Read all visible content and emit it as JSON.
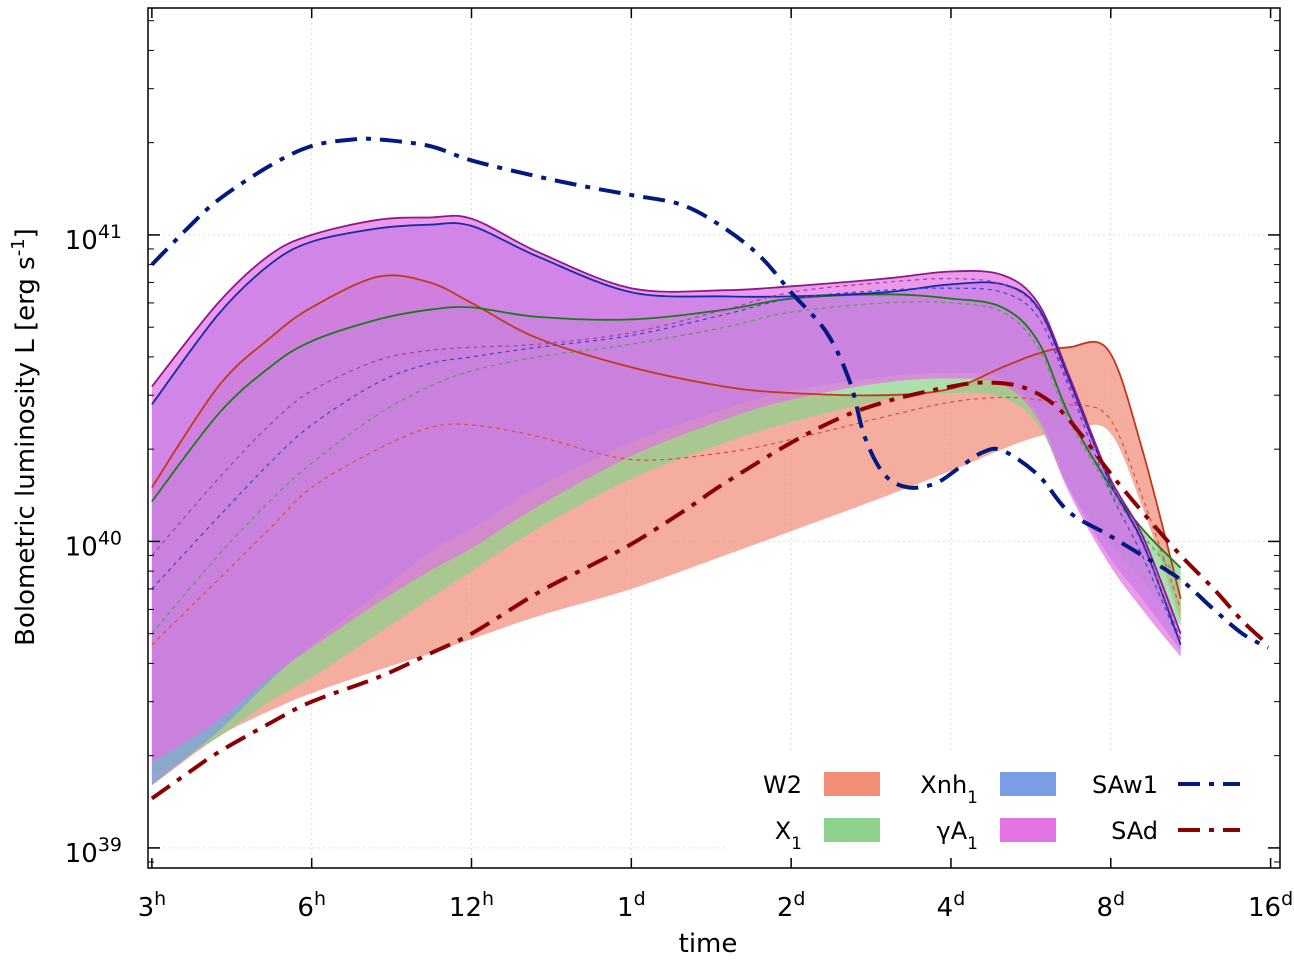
{
  "chart_data": {
    "type": "area",
    "xlabel": "time",
    "ylabel": "Bolometric luminosity L [erg s",
    "ylabel_sup": "-1",
    "ylabel_end": "]",
    "x_scale": "log2",
    "y_scale": "log10",
    "xlim_hours": [
      2.95,
      400
    ],
    "ylim": [
      8.6e+38,
      5.5e+41
    ],
    "x_ticks": [
      {
        "value": 3,
        "label": "3",
        "sup": "h"
      },
      {
        "value": 6,
        "label": "6",
        "sup": "h"
      },
      {
        "value": 12,
        "label": "12",
        "sup": "h"
      },
      {
        "value": 24,
        "label": "1",
        "sup": "d"
      },
      {
        "value": 48,
        "label": "2",
        "sup": "d"
      },
      {
        "value": 96,
        "label": "4",
        "sup": "d"
      },
      {
        "value": 192,
        "label": "8",
        "sup": "d"
      },
      {
        "value": 384,
        "label": "16",
        "sup": "d"
      }
    ],
    "y_ticks": [
      {
        "value": 1e+39,
        "label": "10",
        "sup": "39"
      },
      {
        "value": 1e+40,
        "label": "10",
        "sup": "40"
      },
      {
        "value": 1e+41,
        "label": "10",
        "sup": "41"
      }
    ],
    "series": [
      {
        "name": "W2",
        "kind": "band",
        "color": "#f08e78",
        "edge": "#c03a1a",
        "dashed_color": "#d8503a",
        "x": [
          3,
          4,
          5,
          6,
          8,
          10,
          12,
          16,
          24,
          36,
          48,
          72,
          96,
          120,
          140,
          160,
          190,
          220,
          260
        ],
        "upper": [
          1.5e+40,
          3.2e+40,
          4.6e+40,
          5.8e+40,
          7.3e+40,
          7e+40,
          6e+40,
          4.6e+40,
          3.7e+40,
          3.2e+40,
          3.05e+40,
          3e+40,
          3.15e+40,
          3.7e+40,
          4.1e+40,
          4.3e+40,
          4.2e+40,
          2e+40,
          6.5e+39
        ],
        "lower": [
          1.6e+39,
          2.3e+39,
          2.8e+39,
          3.2e+39,
          3.8e+39,
          4.3e+39,
          4.8e+39,
          5.7e+39,
          7e+39,
          9e+39,
          1.08e+40,
          1.4e+40,
          1.7e+40,
          2e+40,
          2.2e+40,
          2.3e+40,
          2.3e+40,
          1.3e+40,
          5.5e+39
        ],
        "mid": [
          4.6e+39,
          7.5e+39,
          1.1e+40,
          1.5e+40,
          2e+40,
          2.35e+40,
          2.4e+40,
          2.2e+40,
          1.85e+40,
          1.95e+40,
          2.15e+40,
          2.55e+40,
          2.85e+40,
          2.95e+40,
          2.9e+40,
          2.8e+40,
          2.55e+40,
          1.4e+40,
          6e+39
        ]
      },
      {
        "name": "X",
        "sub": "1",
        "kind": "band",
        "color": "#8cd28c",
        "edge": "#1a7a1a",
        "dashed_color": "#5a9a5a",
        "x": [
          3,
          4,
          5,
          6,
          8,
          10,
          12,
          16,
          24,
          36,
          48,
          72,
          96,
          120,
          140,
          160,
          190,
          220,
          260
        ],
        "upper": [
          1.35e+40,
          2.6e+40,
          3.7e+40,
          4.5e+40,
          5.3e+40,
          5.7e+40,
          5.8e+40,
          5.4e+40,
          5.3e+40,
          5.7e+40,
          6.2e+40,
          6.4e+40,
          6.2e+40,
          5.8e+40,
          4.5e+40,
          2.6e+40,
          1.55e+40,
          1.1e+40,
          8.2e+39
        ],
        "lower": [
          1.7e+39,
          2.3e+39,
          3e+39,
          3.6e+39,
          5e+39,
          6.5e+39,
          8e+39,
          1.1e+40,
          1.6e+40,
          2.1e+40,
          2.45e+40,
          2.9e+40,
          3.05e+40,
          2.95e+40,
          2.4e+40,
          1.5e+40,
          1e+40,
          7.5e+39,
          5.3e+39
        ],
        "mid": [
          5e+39,
          9e+39,
          1.35e+40,
          1.8e+40,
          2.6e+40,
          3.2e+40,
          3.6e+40,
          4e+40,
          4.4e+40,
          5e+40,
          5.6e+40,
          6e+40,
          6e+40,
          5.6e+40,
          4.3e+40,
          2.5e+40,
          1.5e+40,
          1.05e+40,
          7.5e+39
        ]
      },
      {
        "name": "Xnh",
        "sub": "1",
        "kind": "band",
        "color": "#7b9de3",
        "edge": "#1a2aaa",
        "dashed_color": "#3a48c0",
        "x": [
          3,
          4,
          5,
          6,
          8,
          10,
          12,
          16,
          24,
          36,
          48,
          72,
          96,
          120,
          140,
          160,
          190,
          220,
          260
        ],
        "upper": [
          2.8e+40,
          5.5e+40,
          8e+40,
          9.5e+40,
          1.05e+41,
          1.08e+41,
          1.07e+41,
          8.5e+40,
          6.5e+40,
          6.3e+40,
          6.3e+40,
          6.5e+40,
          6.9e+40,
          6.9e+40,
          5.8e+40,
          3.4e+40,
          1.6e+40,
          1e+40,
          4.6e+39
        ],
        "lower": [
          1.6e+39,
          2.4e+39,
          3.5e+39,
          4.6e+39,
          6.8e+39,
          9.2e+39,
          1.1e+40,
          1.5e+40,
          2.1e+40,
          2.7e+40,
          3.1e+40,
          3.45e+40,
          3.55e+40,
          3.4e+40,
          2.6e+40,
          1.5e+40,
          9e+39,
          6.5e+39,
          4.4e+39
        ],
        "mid": [
          7e+39,
          1.2e+40,
          1.8e+40,
          2.4e+40,
          3.3e+40,
          3.8e+40,
          4e+40,
          4.3e+40,
          4.7e+40,
          5.5e+40,
          6.2e+40,
          6.6e+40,
          6.7e+40,
          6.5e+40,
          5.4e+40,
          3.2e+40,
          1.5e+40,
          9e+39,
          4.6e+39
        ]
      },
      {
        "name": "γA",
        "sub": "1",
        "kind": "band",
        "color": "#e372e3",
        "edge": "#8b1a8b",
        "dashed_color": "#a040a0",
        "x": [
          3,
          4,
          5,
          6,
          8,
          10,
          12,
          16,
          24,
          36,
          48,
          72,
          96,
          120,
          140,
          160,
          190,
          220,
          260
        ],
        "upper": [
          3.2e+40,
          6e+40,
          8.6e+40,
          1e+41,
          1.12e+41,
          1.14e+41,
          1.13e+41,
          8.8e+40,
          6.7e+40,
          6.6e+40,
          6.8e+40,
          7.2e+40,
          7.6e+40,
          7.4e+40,
          6e+40,
          3.5e+40,
          1.65e+40,
          1.05e+40,
          5e+39
        ],
        "lower": [
          1.9e+39,
          2.6e+39,
          3.6e+39,
          4.5e+39,
          6.3e+39,
          8e+39,
          9.5e+39,
          1.3e+40,
          1.9e+40,
          2.5e+40,
          2.9e+40,
          3.3e+40,
          3.4e+40,
          3.25e+40,
          2.5e+40,
          1.45e+40,
          8.5e+39,
          6e+39,
          4.2e+39
        ],
        "mid": [
          9e+39,
          1.6e+40,
          2.4e+40,
          3.1e+40,
          3.9e+40,
          4.2e+40,
          4.3e+40,
          4.4e+40,
          4.8e+40,
          5.7e+40,
          6.5e+40,
          7e+40,
          7.2e+40,
          6.9e+40,
          5.7e+40,
          3.3e+40,
          1.6e+40,
          9.8e+39,
          4.8e+39
        ]
      },
      {
        "name": "SAw1",
        "kind": "line",
        "style": "dash-dot",
        "color": "#001a80",
        "x": [
          3,
          3.5,
          4,
          5,
          6,
          7.2,
          8,
          10,
          12,
          16,
          20,
          24,
          30,
          36,
          42,
          48,
          56,
          62,
          66,
          72,
          80,
          90,
          100,
          110,
          120,
          140,
          160,
          190,
          220,
          260,
          300,
          340,
          380
        ],
        "y": [
          8e+40,
          1.05e+41,
          1.3e+41,
          1.68e+41,
          1.95e+41,
          2.05e+41,
          2.05e+41,
          1.95e+41,
          1.75e+41,
          1.55e+41,
          1.43e+41,
          1.35e+41,
          1.25e+41,
          1.05e+41,
          8.5e+40,
          6.5e+40,
          4.8e+40,
          3.3e+40,
          2.2e+40,
          1.65e+40,
          1.5e+40,
          1.55e+40,
          1.75e+40,
          1.95e+40,
          1.98e+40,
          1.65e+40,
          1.25e+40,
          1.05e+40,
          9e+39,
          7.5e+39,
          6e+39,
          5e+39,
          4.5e+39
        ]
      },
      {
        "name": "SAd",
        "kind": "line",
        "style": "dash-dot",
        "color": "#8b0000",
        "x": [
          3,
          3.5,
          4,
          5,
          6,
          8,
          10,
          12,
          16,
          20,
          24,
          30,
          36,
          48,
          60,
          72,
          84,
          96,
          110,
          130,
          150,
          170,
          190,
          220,
          260,
          300,
          340,
          380
        ],
        "y": [
          1.45e+39,
          1.75e+39,
          2.05e+39,
          2.55e+39,
          3e+39,
          3.6e+39,
          4.3e+39,
          5e+39,
          6.8e+39,
          8.3e+39,
          9.8e+39,
          1.25e+40,
          1.55e+40,
          2.1e+40,
          2.55e+40,
          2.85e+40,
          3.05e+40,
          3.2e+40,
          3.3e+40,
          3.2e+40,
          2.8e+40,
          2.2e+40,
          1.7e+40,
          1.25e+40,
          9e+39,
          7e+39,
          5.5e+39,
          4.6e+39
        ]
      }
    ],
    "legend": {
      "placement": "bottom-right",
      "items": [
        {
          "name": "W2",
          "sub": "",
          "kind": "band",
          "color": "#f08e78"
        },
        {
          "name": "Xnh",
          "sub": "1",
          "kind": "band",
          "color": "#7b9de3"
        },
        {
          "name": "SAw1",
          "sub": "",
          "kind": "line",
          "color": "#001a80"
        },
        {
          "name": "X",
          "sub": "1",
          "kind": "band",
          "color": "#8cd28c"
        },
        {
          "name": "γA",
          "sub": "1",
          "kind": "band",
          "color": "#e372e3"
        },
        {
          "name": "SAd",
          "sub": "",
          "kind": "line",
          "color": "#8b0000"
        }
      ]
    },
    "grid": true
  }
}
